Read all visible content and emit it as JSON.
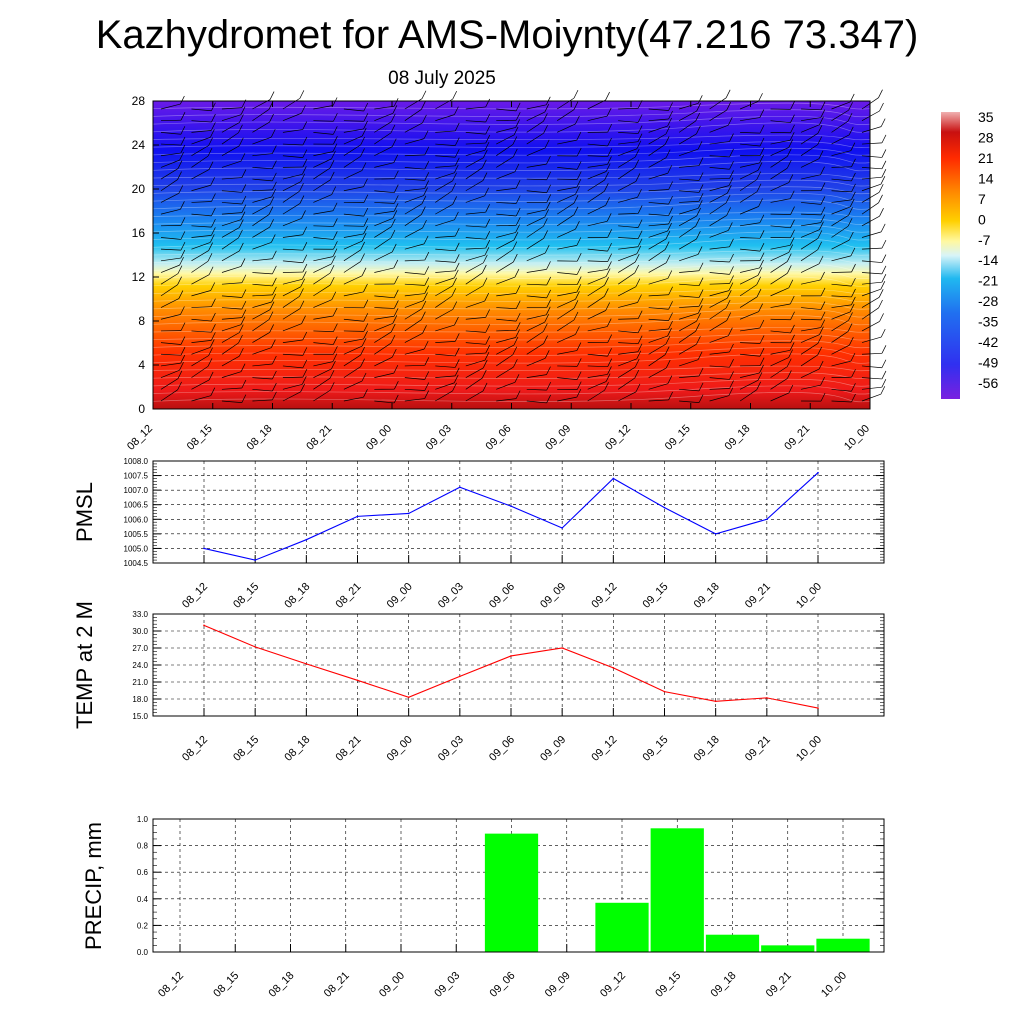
{
  "title": "Kazhydromet for AMS-Moiynty(47.216 73.347)",
  "subtitle": "08 July 2025",
  "time_labels": [
    "08_12",
    "08_15",
    "08_18",
    "08_21",
    "09_00",
    "09_03",
    "09_06",
    "09_09",
    "09_12",
    "09_15",
    "09_18",
    "09_21",
    "10_00"
  ],
  "colors": {
    "pmsl_line": "#0000ff",
    "temp_line": "#ff0000",
    "precip_bar": "#00ff00",
    "grid": "#000000"
  },
  "chart_data": [
    {
      "type": "heatmap",
      "name": "upper-air-temperature-cross-section",
      "y_ticks": [
        "0",
        "4",
        "8",
        "12",
        "16",
        "20",
        "24",
        "28"
      ],
      "ylim": [
        0,
        28
      ],
      "x_labels_ref": "time_labels",
      "colorbar": {
        "labels": [
          "35",
          "28",
          "21",
          "14",
          "7",
          "0",
          "-7",
          "-14",
          "-21",
          "-28",
          "-35",
          "-42",
          "-49",
          "-56"
        ],
        "range": [
          -56,
          35
        ]
      },
      "description_layers": [
        "filled temperature contours",
        "wind barbs"
      ]
    },
    {
      "type": "line",
      "ylabel": "PMSL",
      "ylim": [
        1004.5,
        1008.0
      ],
      "y_ticks": [
        "1004.5",
        "1005.0",
        "1005.5",
        "1006.0",
        "1006.5",
        "1007.0",
        "1007.5",
        "1008.0"
      ],
      "series": [
        {
          "values": [
            1005.0,
            1004.6,
            1005.3,
            1006.1,
            1006.2,
            1007.1,
            1006.45,
            1005.7,
            1007.4,
            1006.4,
            1005.5,
            1006.0,
            1007.6
          ]
        }
      ]
    },
    {
      "type": "line",
      "ylabel": "TEMP at 2 M",
      "ylim": [
        15.0,
        33.0
      ],
      "y_ticks": [
        "15.0",
        "18.0",
        "21.0",
        "24.0",
        "27.0",
        "30.0",
        "33.0"
      ],
      "series": [
        {
          "values": [
            31.0,
            27.2,
            24.2,
            21.3,
            18.3,
            22.0,
            25.6,
            27.0,
            23.5,
            19.3,
            17.6,
            18.2,
            16.4
          ]
        }
      ]
    },
    {
      "type": "bar",
      "ylabel": "PRECIP, mm",
      "ylim": [
        0.0,
        1.0
      ],
      "y_ticks": [
        "0.0",
        "0.2",
        "0.4",
        "0.6",
        "0.8",
        "1.0"
      ],
      "values": [
        0,
        0,
        0,
        0,
        0,
        0,
        0.89,
        0,
        0.37,
        0.93,
        0.13,
        0.05,
        0.1
      ]
    }
  ]
}
